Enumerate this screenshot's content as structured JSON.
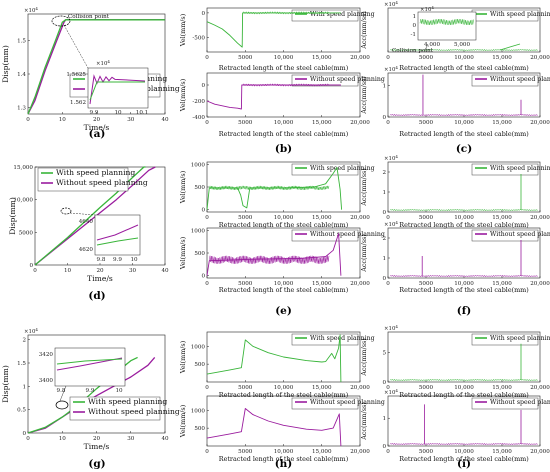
{
  "colors": {
    "speed": "#39b53a",
    "nospeed": "#9a1c9e",
    "axis": "#222222"
  },
  "legend": {
    "with": "With speed planning",
    "without": "Without speed planning"
  },
  "captions": [
    "(a)",
    "(b)",
    "(c)",
    "(d)",
    "(e)",
    "(f)",
    "(g)",
    "(h)",
    "(i)"
  ],
  "common": {
    "time_label": "Time/s",
    "retracted_label": "Retracted length of the steel cable(mm)",
    "disp_label": "Disp(mm)",
    "vel_label": "Vel(mm/s)",
    "acc_label": "Acc(mm/ss)"
  },
  "chart_data": [
    {
      "id": "a",
      "type": "line",
      "xlim": [
        0,
        40
      ],
      "x_ticks": [
        "0",
        "10",
        "20",
        "30",
        "40"
      ],
      "ylim": [
        1.28,
        1.58
      ],
      "y_ticks": [
        "1.3",
        "1.4",
        "1.5"
      ],
      "y_tick_values": [
        1.3,
        1.4,
        1.5
      ],
      "y_exponent": "×10",
      "annotation": "Collision point",
      "series": [
        {
          "name": "With speed planning",
          "x": [
            0,
            2,
            5,
            8,
            10,
            11,
            40
          ],
          "y": [
            1.28,
            1.33,
            1.42,
            1.5,
            1.555,
            1.5625,
            1.5625
          ]
        },
        {
          "name": "Without speed planning",
          "x": [
            0,
            2,
            5,
            8,
            10.5,
            11,
            40
          ],
          "y": [
            1.28,
            1.32,
            1.41,
            1.49,
            1.555,
            1.5625,
            1.5625
          ]
        }
      ],
      "inset": {
        "xlim": [
          9.85,
          10.12
        ],
        "x_ticks": [
          "9.9",
          "10",
          "10.1"
        ],
        "y_ticks": [
          "1.5625",
          "1.562"
        ],
        "y_exponent": "×10"
      }
    },
    {
      "id": "b",
      "type": "line",
      "top": {
        "xlim": [
          0,
          20000
        ],
        "ylim": [
          -800,
          100
        ],
        "y_ticks": [
          "0",
          "-500"
        ],
        "y_tick_values": [
          0,
          -500
        ],
        "x": [
          0,
          1000,
          2000,
          3000,
          4000,
          4600,
          4650,
          5000,
          10000,
          15000,
          16000,
          17500
        ],
        "y": [
          -180,
          -250,
          -330,
          -460,
          -620,
          -700,
          0,
          0,
          0,
          0,
          0,
          0
        ]
      },
      "bottom": {
        "xlim": [
          0,
          20000
        ],
        "ylim": [
          -400,
          150
        ],
        "y_ticks": [
          "0",
          "-200",
          "-400"
        ],
        "y_tick_values": [
          0,
          -200,
          -400
        ],
        "x": [
          0,
          1000,
          2000,
          3000,
          4000,
          4500,
          4550,
          5000,
          10000,
          15000,
          17500
        ],
        "y": [
          -200,
          -240,
          -260,
          -280,
          -290,
          -300,
          0,
          0,
          0,
          0,
          0
        ]
      },
      "x_ticks": [
        "0",
        "5000",
        "10,000",
        "15,000",
        "20,000"
      ]
    },
    {
      "id": "c",
      "type": "line",
      "top": {
        "xlim": [
          0,
          20000
        ],
        "y_exponent": "×10",
        "inset_x_ticks": [
          "4,000",
          "5,000"
        ],
        "inset_y_ticks": [
          "1",
          "0",
          "-1"
        ],
        "inset_y_exponent": "×10",
        "annotation": "Collision point"
      },
      "bottom": {
        "xlim": [
          0,
          20000
        ],
        "ylim": [
          0,
          1.4
        ],
        "y_ticks": [
          "1",
          "0"
        ],
        "y_tick_values": [
          1,
          0
        ],
        "y_exponent": "×10",
        "spikes": [
          {
            "x": 4600,
            "v": 1.35
          },
          {
            "x": 17500,
            "v": 0.55
          }
        ]
      },
      "x_ticks": [
        "0",
        "5000",
        "10,000",
        "15,000",
        "20,000"
      ]
    },
    {
      "id": "d",
      "type": "line",
      "xlim": [
        0,
        40
      ],
      "x_ticks": [
        "0",
        "10",
        "20",
        "30",
        "40"
      ],
      "ylim": [
        0,
        15000
      ],
      "y_ticks": [
        "0",
        "5000",
        "10,000",
        "15,000"
      ],
      "y_tick_values": [
        0,
        5000,
        10000,
        15000
      ],
      "series": [
        {
          "name": "With speed planning",
          "x": [
            0,
            5,
            10,
            15,
            20,
            25,
            30,
            33.5,
            34
          ],
          "y": [
            0,
            2100,
            4200,
            6500,
            8800,
            11000,
            13400,
            15000,
            15000
          ]
        },
        {
          "name": "Without speed planning",
          "x": [
            0,
            5,
            10,
            15,
            20,
            25,
            30,
            35,
            37
          ],
          "y": [
            0,
            2000,
            4000,
            6000,
            8000,
            10000,
            12200,
            14500,
            15000
          ]
        }
      ],
      "inset": {
        "xlim": [
          9.75,
          10.05
        ],
        "x_ticks": [
          "9.8",
          "9.9",
          "10"
        ],
        "y_ticks": [
          "4640",
          "4620"
        ]
      }
    },
    {
      "id": "e",
      "type": "line",
      "top": {
        "xlim": [
          0,
          20000
        ],
        "ylim": [
          -50,
          1050
        ],
        "y_ticks": [
          "1000",
          "500",
          "0"
        ],
        "y_tick_values": [
          1000,
          500,
          0
        ],
        "x": [
          0,
          300,
          1000,
          2000,
          3000,
          4000,
          4400,
          4700,
          5200,
          5600,
          10000,
          14000,
          15500,
          16500,
          17000,
          17400,
          17600
        ],
        "y": [
          0,
          480,
          480,
          480,
          480,
          480,
          320,
          90,
          40,
          480,
          480,
          500,
          570,
          800,
          930,
          450,
          0
        ]
      },
      "bottom": {
        "xlim": [
          0,
          20000
        ],
        "ylim": [
          -50,
          1050
        ],
        "y_ticks": [
          "1000",
          "500",
          "0"
        ],
        "y_tick_values": [
          1000,
          500,
          0
        ],
        "x": [
          0,
          300,
          2000,
          4000,
          5000,
          8000,
          12000,
          15500,
          16500,
          17200,
          17500
        ],
        "y": [
          0,
          330,
          340,
          350,
          360,
          370,
          380,
          420,
          560,
          930,
          0
        ]
      },
      "x_ticks": [
        "0",
        "5000",
        "10,000",
        "15,000",
        "20,000"
      ]
    },
    {
      "id": "f",
      "type": "line",
      "top": {
        "xlim": [
          0,
          20000
        ],
        "ylim": [
          0,
          2.5
        ],
        "y_ticks": [
          "2",
          "1",
          "0"
        ],
        "y_tick_values": [
          2,
          1,
          0
        ],
        "y_exponent": "×10",
        "spikes": [
          {
            "x": 17500,
            "v": 1.9
          }
        ]
      },
      "bottom": {
        "xlim": [
          0,
          20000
        ],
        "ylim": [
          0,
          2.5
        ],
        "y_ticks": [
          "2",
          "1",
          "0"
        ],
        "y_tick_values": [
          2,
          1,
          0
        ],
        "y_exponent": "×10",
        "spikes": [
          {
            "x": 4500,
            "v": 1.1
          },
          {
            "x": 17500,
            "v": 1.9
          }
        ]
      },
      "x_ticks": [
        "0",
        "5000",
        "10,000",
        "15,000",
        "20,000"
      ]
    },
    {
      "id": "g",
      "type": "line",
      "xlim": [
        0,
        40
      ],
      "x_ticks": [
        "0",
        "10",
        "20",
        "30",
        "40"
      ],
      "ylim": [
        0,
        2.1
      ],
      "y_ticks": [
        "0",
        "0.5",
        "1",
        "1.5",
        "2"
      ],
      "y_tick_values": [
        0,
        0.5,
        1,
        1.5,
        2
      ],
      "y_exponent": "×10",
      "series": [
        {
          "name": "With speed planning",
          "x": [
            0,
            5,
            10,
            15,
            20,
            25,
            30,
            32
          ],
          "y": [
            0,
            0.12,
            0.34,
            0.62,
            0.95,
            1.25,
            1.55,
            1.62
          ]
        },
        {
          "name": "Without speed planning",
          "x": [
            0,
            5,
            10,
            15,
            20,
            25,
            30,
            35,
            37
          ],
          "y": [
            0,
            0.1,
            0.34,
            0.58,
            0.8,
            1.0,
            1.2,
            1.45,
            1.62
          ]
        }
      ],
      "inset": {
        "xlim": [
          9.75,
          10.05
        ],
        "x_ticks": [
          "9.8",
          "9.9",
          "10"
        ],
        "y_ticks": [
          "3420",
          "3400"
        ]
      }
    },
    {
      "id": "h",
      "type": "line",
      "top": {
        "xlim": [
          0,
          20000
        ],
        "ylim": [
          0,
          1400
        ],
        "y_ticks": [
          "1000",
          "500"
        ],
        "y_tick_values": [
          1000,
          500
        ],
        "x": [
          0,
          1000,
          2000,
          3000,
          4000,
          4500,
          5000,
          6000,
          8000,
          10000,
          13000,
          15000,
          15500,
          16300,
          16700,
          17200,
          17400,
          17500
        ],
        "y": [
          220,
          260,
          300,
          340,
          380,
          400,
          1180,
          1000,
          820,
          700,
          600,
          560,
          570,
          800,
          650,
          950,
          1320,
          0
        ]
      },
      "bottom": {
        "xlim": [
          0,
          20000
        ],
        "ylim": [
          0,
          1400
        ],
        "y_ticks": [
          "1000",
          "500"
        ],
        "y_tick_values": [
          1000,
          500
        ],
        "x": [
          0,
          1000,
          2000,
          3000,
          4000,
          4500,
          5000,
          6000,
          8000,
          10000,
          13000,
          15000,
          16500,
          17300,
          17500
        ],
        "y": [
          220,
          260,
          300,
          340,
          380,
          400,
          1050,
          880,
          700,
          580,
          470,
          440,
          500,
          900,
          0
        ]
      },
      "x_ticks": [
        "0",
        "5000",
        "10,000",
        "15,000",
        "20,000"
      ]
    },
    {
      "id": "i",
      "type": "line",
      "top": {
        "xlim": [
          0,
          20000
        ],
        "ylim": [
          0,
          8.5
        ],
        "y_ticks": [
          "5",
          "0"
        ],
        "y_tick_values": [
          5,
          0
        ],
        "y_exponent": "×10",
        "spikes": [
          {
            "x": 17500,
            "v": 6.5
          }
        ]
      },
      "bottom": {
        "xlim": [
          0,
          20000
        ],
        "ylim": [
          0,
          1.8
        ],
        "y_ticks": [
          "1",
          "0"
        ],
        "y_tick_values": [
          1,
          0
        ],
        "y_exponent": "×10",
        "spikes": [
          {
            "x": 4800,
            "v": 1.5
          },
          {
            "x": 17500,
            "v": 1.3
          }
        ]
      },
      "x_ticks": [
        "0",
        "5000",
        "10,000",
        "15,000",
        "20,000"
      ]
    }
  ]
}
